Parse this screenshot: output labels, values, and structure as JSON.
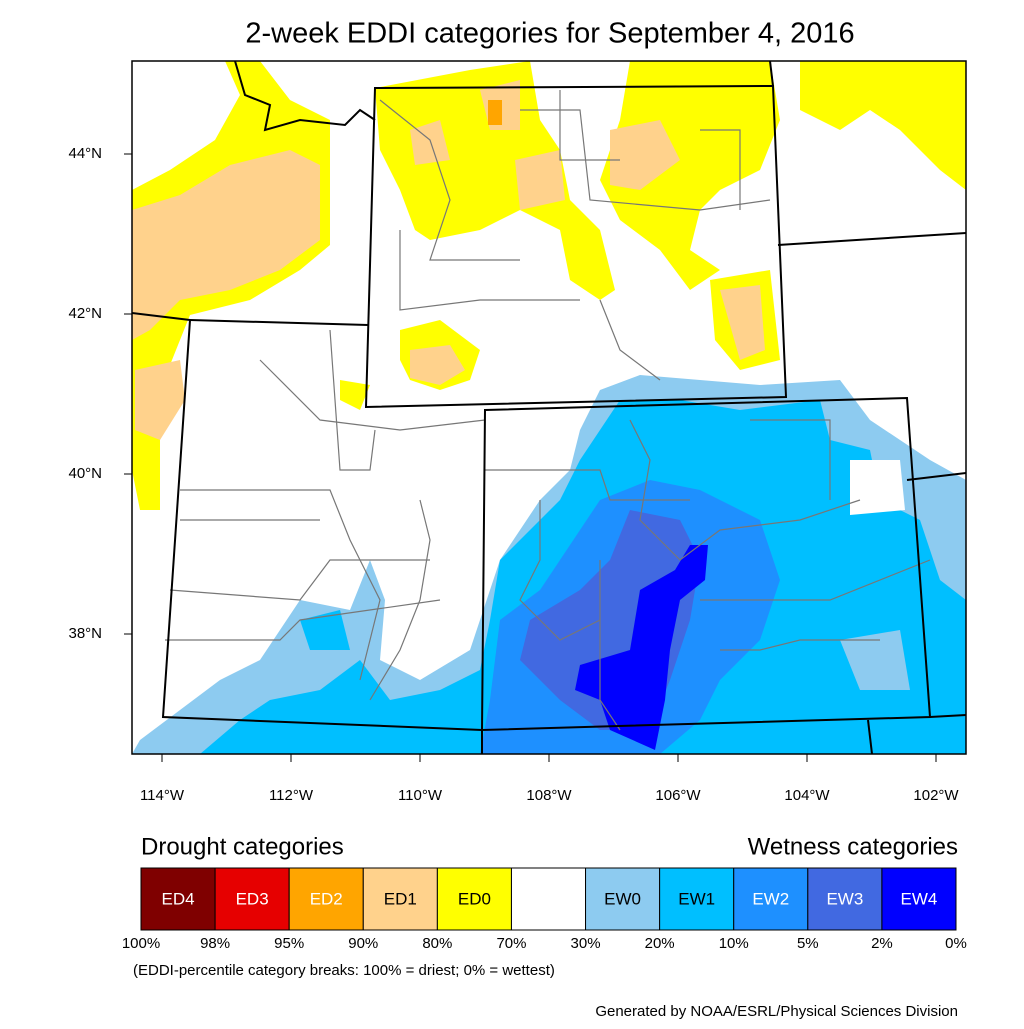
{
  "title": "2-week EDDI categories for September 4, 2016",
  "map": {
    "lat_labels": [
      "44°N",
      "42°N",
      "40°N",
      "38°N"
    ],
    "lon_labels": [
      "114°W",
      "112°W",
      "110°W",
      "108°W",
      "106°W",
      "104°W",
      "102°W"
    ]
  },
  "legend": {
    "drought_heading": "Drought categories",
    "wetness_heading": "Wetness categories",
    "categories": [
      {
        "label": "ED4",
        "color": "#7f0000",
        "text_color": "#ffffff"
      },
      {
        "label": "ED3",
        "color": "#e60000",
        "text_color": "#ffffff"
      },
      {
        "label": "ED2",
        "color": "#ffa500",
        "text_color": "#ffffff"
      },
      {
        "label": "ED1",
        "color": "#ffd28c",
        "text_color": "#000000"
      },
      {
        "label": "ED0",
        "color": "#ffff00",
        "text_color": "#000000"
      },
      {
        "label": null,
        "color": "#ffffff",
        "text_color": "#000000"
      },
      {
        "label": "EW0",
        "color": "#8dcbf0",
        "text_color": "#000000"
      },
      {
        "label": "EW1",
        "color": "#00bfff",
        "text_color": "#000000"
      },
      {
        "label": "EW2",
        "color": "#1e90ff",
        "text_color": "#ffffff"
      },
      {
        "label": "EW3",
        "color": "#4169e1",
        "text_color": "#ffffff"
      },
      {
        "label": "EW4",
        "color": "#0000ff",
        "text_color": "#ffffff"
      }
    ],
    "breaks": [
      "100%",
      "98%",
      "95%",
      "90%",
      "80%",
      "70%",
      "30%",
      "20%",
      "10%",
      "5%",
      "2%",
      "0%"
    ],
    "note": "(EDDI-percentile category breaks: 100% = driest; 0% = wettest)"
  },
  "credit": "Generated by NOAA/ESRL/Physical Sciences Division"
}
